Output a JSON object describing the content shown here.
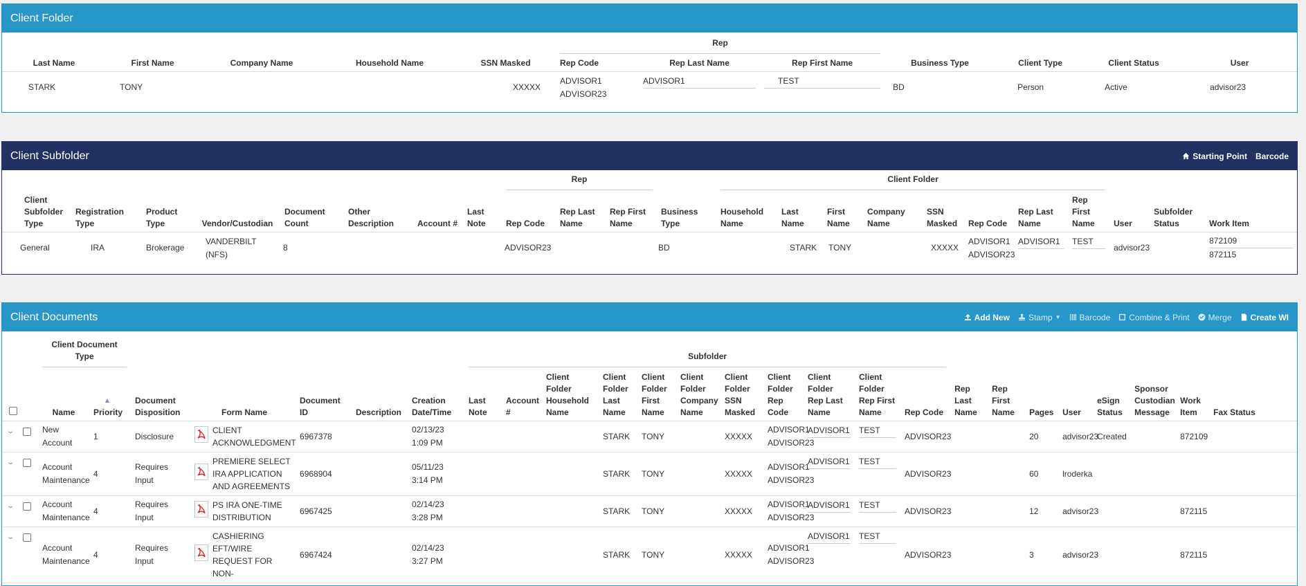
{
  "client_folder": {
    "title": "Client Folder",
    "group_rep": "Rep",
    "columns": [
      "Last Name",
      "First Name",
      "Company Name",
      "Household Name",
      "SSN Masked",
      "Rep Code",
      "Rep Last Name",
      "Rep First Name",
      "Business Type",
      "Client Type",
      "Client Status",
      "User"
    ],
    "row": {
      "last_name": "STARK",
      "first_name": "TONY",
      "company_name": "",
      "household_name": "",
      "ssn": "XXXXX",
      "rep_code_1": "ADVISOR1",
      "rep_code_2": "ADVISOR23",
      "rep_last": "ADVISOR1",
      "rep_first": "TEST",
      "business_type": "BD",
      "client_type": "Person",
      "client_status": "Active",
      "user": "advisor23"
    }
  },
  "client_subfolder": {
    "title": "Client Subfolder",
    "tools": {
      "starting_point": "Starting Point",
      "barcode": "Barcode"
    },
    "group_rep": "Rep",
    "group_folder": "Client Folder",
    "columns": {
      "type": "Client Subfolder Type",
      "registration": "Registration Type",
      "product": "Product Type",
      "vendor": "Vendor/Custodian",
      "doc_count": "Document Count",
      "other_desc": "Other Description",
      "account": "Account #",
      "last_note": "Last Note",
      "rep_code": "Rep Code",
      "rep_last": "Rep Last Name",
      "rep_first": "Rep First Name",
      "business": "Business Type",
      "household": "Household Name",
      "last_name": "Last Name",
      "first_name": "First Name",
      "company": "Company Name",
      "ssn": "SSN Masked",
      "f_rep_code": "Rep Code",
      "f_rep_last": "Rep Last Name",
      "f_rep_first": "Rep First Name",
      "user": "User",
      "status": "Subfolder Status",
      "work_item": "Work Item"
    },
    "row": {
      "type": "General",
      "registration": "IRA",
      "product": "Brokerage",
      "vendor": "VANDERBILT (NFS)",
      "doc_count": "8",
      "rep_code": "ADVISOR23",
      "business": "BD",
      "last_name": "STARK",
      "first_name": "TONY",
      "ssn": "XXXXX",
      "f_rep_code_1": "ADVISOR1",
      "f_rep_code_2": "ADVISOR23",
      "f_rep_last": "ADVISOR1",
      "f_rep_first": "TEST",
      "user": "advisor23",
      "work_item_1": "872109",
      "work_item_2": "872115"
    }
  },
  "client_documents": {
    "title": "Client Documents",
    "tools": {
      "add_new": "Add New",
      "stamp": "Stamp",
      "barcode": "Barcode",
      "combine_print": "Combine & Print",
      "merge": "Merge",
      "create_wi": "Create WI"
    },
    "group_type": "Client Document Type",
    "group_subfolder": "Subfolder",
    "columns": {
      "name": "Name",
      "priority": "Priority",
      "disposition": "Document Disposition",
      "form": "Form Name",
      "doc_id": "Document ID",
      "description": "Description",
      "created": "Creation Date/Time",
      "last_note": "Last Note",
      "account": "Account #",
      "household": "Client Folder Household Name",
      "cf_last": "Client Folder Last Name",
      "cf_first": "Client Folder First Name",
      "cf_company": "Client Folder Company Name",
      "cf_ssn": "Client Folder SSN Masked",
      "cf_rep_code": "Client Folder Rep Code",
      "cf_rep_last": "Client Folder Rep Last Name",
      "cf_rep_first": "Client Folder Rep First Name",
      "rep_code": "Rep Code",
      "rep_last": "Rep Last Name",
      "rep_first": "Rep First Name",
      "pages": "Pages",
      "user": "User",
      "esign": "eSign Status",
      "sponsor": "Sponsor Custodian Message",
      "work_item": "Work Item",
      "fax": "Fax Status"
    },
    "rows": [
      {
        "name": "New Account",
        "priority": "1",
        "disposition": "Disclosure",
        "form": "CLIENT ACKNOWLEDGMENT",
        "doc_id": "6967378",
        "date": "02/13/23",
        "time": "1:09 PM",
        "cf_last": "STARK",
        "cf_first": "TONY",
        "cf_ssn": "XXXXX",
        "rc1": "ADVISOR1",
        "rc2": "ADVISOR23",
        "rlast": "ADVISOR1",
        "rfirst": "TEST",
        "rep_code": "ADVISOR23",
        "pages": "20",
        "user": "advisor23",
        "esign": "Created",
        "work_item": "872109"
      },
      {
        "name": "Account Maintenance",
        "priority": "4",
        "disposition": "Requires Input",
        "form": "PREMIERE SELECT IRA APPLICATION AND AGREEMENTS",
        "doc_id": "6968904",
        "date": "05/11/23",
        "time": "3:14 PM",
        "cf_last": "STARK",
        "cf_first": "TONY",
        "cf_ssn": "XXXXX",
        "rc1": "ADVISOR1",
        "rc2": "ADVISOR23",
        "rlast": "ADVISOR1",
        "rfirst": "TEST",
        "rep_code": "ADVISOR23",
        "pages": "60",
        "user": "lroderka",
        "esign": "",
        "work_item": ""
      },
      {
        "name": "Account Maintenance",
        "priority": "4",
        "disposition": "Requires Input",
        "form": "PS IRA ONE-TIME DISTRIBUTION",
        "doc_id": "6967425",
        "date": "02/14/23",
        "time": "3:28 PM",
        "cf_last": "STARK",
        "cf_first": "TONY",
        "cf_ssn": "XXXXX",
        "rc1": "ADVISOR1",
        "rc2": "ADVISOR23",
        "rlast": "ADVISOR1",
        "rfirst": "TEST",
        "rep_code": "ADVISOR23",
        "pages": "12",
        "user": "advisor23",
        "esign": "",
        "work_item": "872115"
      },
      {
        "name": "Account Maintenance",
        "priority": "4",
        "disposition": "Requires Input",
        "form": "CASHIERING EFT/WIRE REQUEST FOR NON-",
        "doc_id": "6967424",
        "date": "02/14/23",
        "time": "3:27 PM",
        "cf_last": "STARK",
        "cf_first": "TONY",
        "cf_ssn": "XXXXX",
        "rc1": "ADVISOR1",
        "rc2": "ADVISOR23",
        "rlast": "ADVISOR1",
        "rfirst": "TEST",
        "rep_code": "ADVISOR23",
        "pages": "3",
        "user": "advisor23",
        "esign": "",
        "work_item": "872115"
      }
    ]
  }
}
